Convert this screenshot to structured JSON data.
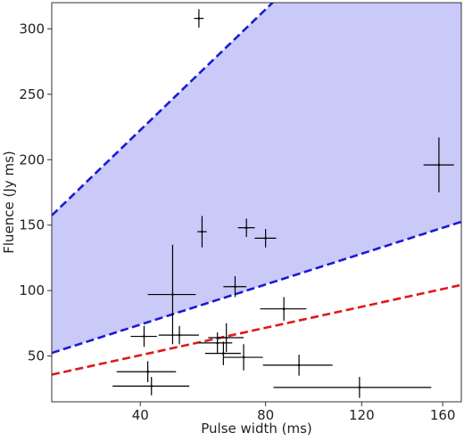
{
  "chart_data": {
    "type": "scatter",
    "title": "",
    "xlabel": "Pulse width (ms)",
    "ylabel": "Fluence (Jy ms)",
    "xlim": [
      20,
      170
    ],
    "ylim": [
      15,
      320
    ],
    "x_scale": "sqrt",
    "x_ticks": [
      40,
      80,
      120,
      160
    ],
    "y_ticks": [
      50,
      100,
      150,
      200,
      250,
      300
    ],
    "x_tick_labels": [
      "40",
      "80",
      "120",
      "160"
    ],
    "y_tick_labels": [
      "50",
      "100",
      "150",
      "200",
      "250",
      "300"
    ],
    "grid": false,
    "legend": "none",
    "colors": {
      "band_fill": "#c9caf8",
      "blue_curve": "#1a1ad6",
      "red_curve": "#e01818",
      "points": "#000000"
    },
    "curves": [
      {
        "id": "blue-upper",
        "color": "#1a1ad6",
        "style": "dashed",
        "k": 35.2
      },
      {
        "id": "blue-lower",
        "color": "#1a1ad6",
        "style": "dashed",
        "k": 11.7
      },
      {
        "id": "red",
        "color": "#e01818",
        "style": "dashed",
        "k": 8.0
      }
    ],
    "shaded_band": {
      "between": [
        "blue-lower",
        "blue-upper"
      ],
      "color": "#c9caf8"
    },
    "points": [
      {
        "x": 57,
        "y": 308,
        "xerr": [
          1.5,
          1.5
        ],
        "yerr": [
          7,
          7
        ]
      },
      {
        "x": 158,
        "y": 196,
        "xerr": [
          8,
          8
        ],
        "yerr": [
          21,
          21
        ]
      },
      {
        "x": 58,
        "y": 145,
        "xerr": [
          1.5,
          1.5
        ],
        "yerr": [
          12,
          12
        ]
      },
      {
        "x": 73,
        "y": 148,
        "xerr": [
          3,
          3
        ],
        "yerr": [
          7,
          7
        ]
      },
      {
        "x": 80,
        "y": 140,
        "xerr": [
          4,
          4
        ],
        "yerr": [
          7,
          7
        ]
      },
      {
        "x": 69,
        "y": 103,
        "xerr": [
          4,
          4
        ],
        "yerr": [
          8,
          8
        ]
      },
      {
        "x": 49,
        "y": 97,
        "xerr": [
          7,
          7
        ],
        "yerr": [
          38,
          38
        ]
      },
      {
        "x": 87,
        "y": 86,
        "xerr": [
          9,
          9
        ],
        "yerr": [
          9,
          9
        ]
      },
      {
        "x": 41,
        "y": 65,
        "xerr": [
          3.5,
          3.5
        ],
        "yerr": [
          8,
          8
        ]
      },
      {
        "x": 51,
        "y": 66,
        "xerr": [
          6,
          6
        ],
        "yerr": [
          7,
          7
        ]
      },
      {
        "x": 63,
        "y": 60,
        "xerr": [
          6,
          5
        ],
        "yerr": [
          8,
          8
        ]
      },
      {
        "x": 66,
        "y": 64,
        "xerr": [
          6,
          6
        ],
        "yerr": [
          11,
          11
        ]
      },
      {
        "x": 65,
        "y": 52,
        "xerr": [
          6,
          6
        ],
        "yerr": [
          9,
          9
        ]
      },
      {
        "x": 72,
        "y": 49,
        "xerr": [
          7,
          7
        ],
        "yerr": [
          10,
          10
        ]
      },
      {
        "x": 42,
        "y": 38,
        "xerr": [
          8,
          8
        ],
        "yerr": [
          8,
          8
        ]
      },
      {
        "x": 43,
        "y": 27,
        "xerr": [
          10,
          11
        ],
        "yerr": [
          7,
          7
        ]
      },
      {
        "x": 93,
        "y": 43,
        "xerr": [
          14,
          14
        ],
        "yerr": [
          8,
          8
        ]
      },
      {
        "x": 119,
        "y": 26,
        "xerr": [
          36,
          35
        ],
        "yerr": [
          8,
          8
        ]
      }
    ]
  }
}
